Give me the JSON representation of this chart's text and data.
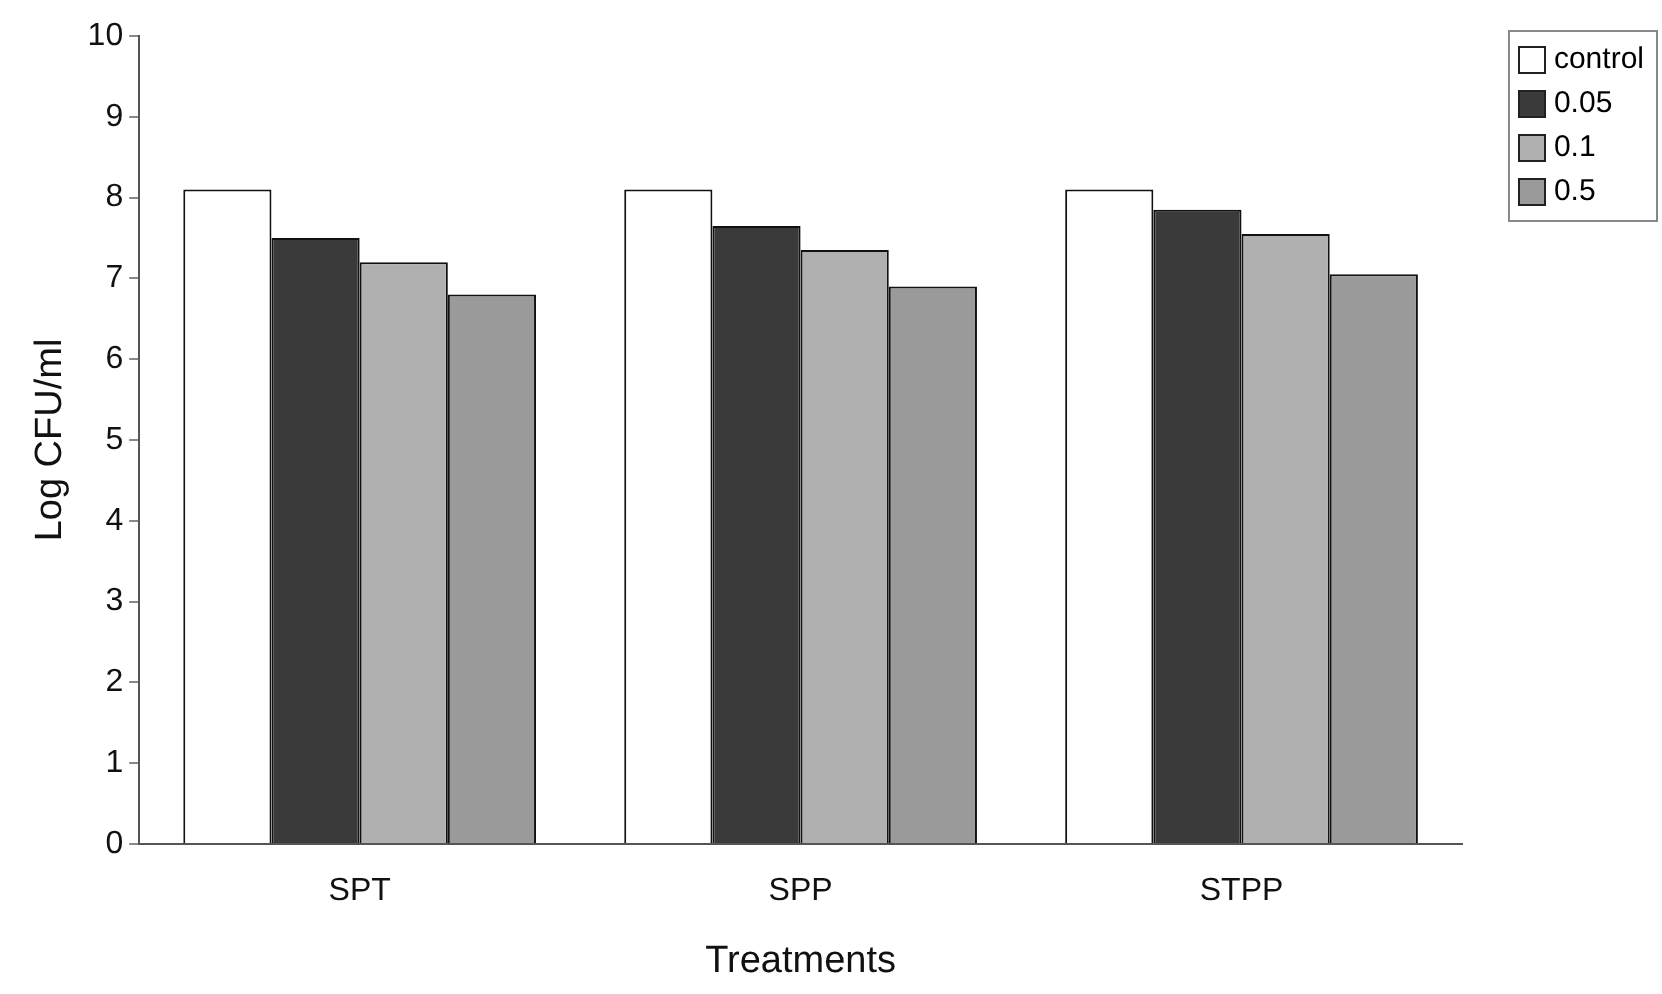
{
  "chart_data": {
    "type": "bar",
    "xlabel": "Treatments",
    "ylabel": "Log CFU/ml",
    "categories": [
      "SPT",
      "SPP",
      "STPP"
    ],
    "series": [
      {
        "name": "control",
        "color": "#ffffff",
        "values": [
          8.1,
          8.1,
          8.1
        ]
      },
      {
        "name": "0.05",
        "color": "#3a3a3a",
        "values": [
          7.5,
          7.65,
          7.85
        ]
      },
      {
        "name": "0.1",
        "color": "#b0b0b0",
        "values": [
          7.2,
          7.35,
          7.55
        ]
      },
      {
        "name": "0.5",
        "color": "#9a9a9a",
        "values": [
          6.8,
          6.9,
          7.05
        ]
      }
    ],
    "ylim": [
      0,
      10
    ],
    "yticks": [
      0,
      1,
      2,
      3,
      4,
      5,
      6,
      7,
      8,
      9,
      10
    ],
    "grid": false,
    "legend": "top right"
  }
}
